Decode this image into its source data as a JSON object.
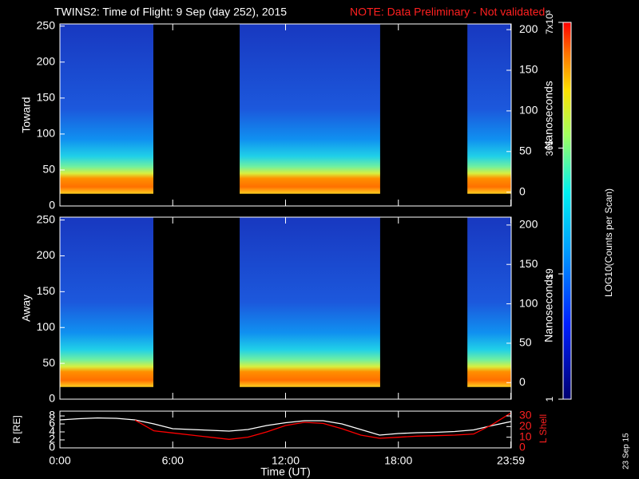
{
  "chart_data": [
    {
      "type": "spectrogram",
      "title": "TWINS2: Time of Flight:  9 Sep (day 252), 2015",
      "subtitle": "NOTE: Data Preliminary - Not validated",
      "ylabel": "Toward",
      "y2label": "Nanoseconds",
      "xlim": [
        0,
        24
      ],
      "ylim": [
        0,
        253
      ],
      "yticks": [
        0,
        50,
        100,
        150,
        200,
        250
      ],
      "y2lim": [
        -17,
        207
      ],
      "y2ticks": [
        0,
        50,
        100,
        150,
        200
      ],
      "data_intervals": [
        [
          0,
          4.97
        ],
        [
          9.56,
          17.03
        ],
        [
          21.67,
          24
        ]
      ]
    },
    {
      "type": "spectrogram",
      "ylabel": "Away",
      "y2label": "Nanoseconds",
      "xlim": [
        0,
        24
      ],
      "ylim": [
        0,
        254
      ],
      "yticks": [
        0,
        50,
        100,
        150,
        200,
        250
      ],
      "y2lim": [
        -21,
        210
      ],
      "y2ticks": [
        0,
        50,
        100,
        150,
        200
      ],
      "data_intervals": [
        [
          0,
          4.97
        ],
        [
          9.56,
          17.03
        ],
        [
          21.67,
          24
        ]
      ]
    },
    {
      "type": "line",
      "xlabel": "Time (UT)",
      "ylabel": "R [RE]",
      "y2label": "L Shell",
      "xlim": [
        0,
        24
      ],
      "xticks": [
        {
          "value": 0,
          "label": "0:00"
        },
        {
          "value": 6,
          "label": "6:00"
        },
        {
          "value": 12,
          "label": "12:00"
        },
        {
          "value": 18,
          "label": "18:00"
        },
        {
          "value": 23.98,
          "label": "23:59"
        }
      ],
      "ylim": [
        0,
        9.2
      ],
      "yticks": [
        0,
        2,
        4,
        6,
        8
      ],
      "y2lim": [
        0,
        34.5
      ],
      "y2ticks": [
        0,
        10,
        20,
        30
      ],
      "x": [
        0,
        1,
        2,
        3,
        4,
        5,
        6,
        7,
        8,
        9,
        10,
        11,
        12,
        13,
        14,
        15,
        16,
        17,
        18,
        19,
        20,
        21,
        22,
        23,
        24
      ],
      "series": [
        {
          "color": "#ffffff",
          "values": [
            7,
            7.3,
            7.5,
            7.4,
            7,
            6,
            4.8,
            4.6,
            4.4,
            4.2,
            4.6,
            5.6,
            6.3,
            6.8,
            6.8,
            6,
            4.6,
            3.2,
            3.6,
            3.8,
            3.9,
            4.1,
            4.5,
            5.6,
            6.6
          ]
        },
        {
          "color": "#ff0000",
          "axis": "y2",
          "values": [
            null,
            null,
            null,
            null,
            26,
            16,
            14,
            12,
            10,
            8,
            10,
            15,
            21,
            24,
            23,
            18,
            12,
            9,
            10,
            11,
            11.5,
            12,
            13,
            22,
            33
          ]
        }
      ]
    },
    {
      "type": "colorbar",
      "label": "LOG10(Counts per Scan)",
      "log": true,
      "clim": [
        1,
        7000
      ],
      "ticks": [
        1,
        19,
        365,
        {
          "value": 7000,
          "label": "7x10³"
        }
      ],
      "annotation": "23 Sep 15"
    }
  ]
}
